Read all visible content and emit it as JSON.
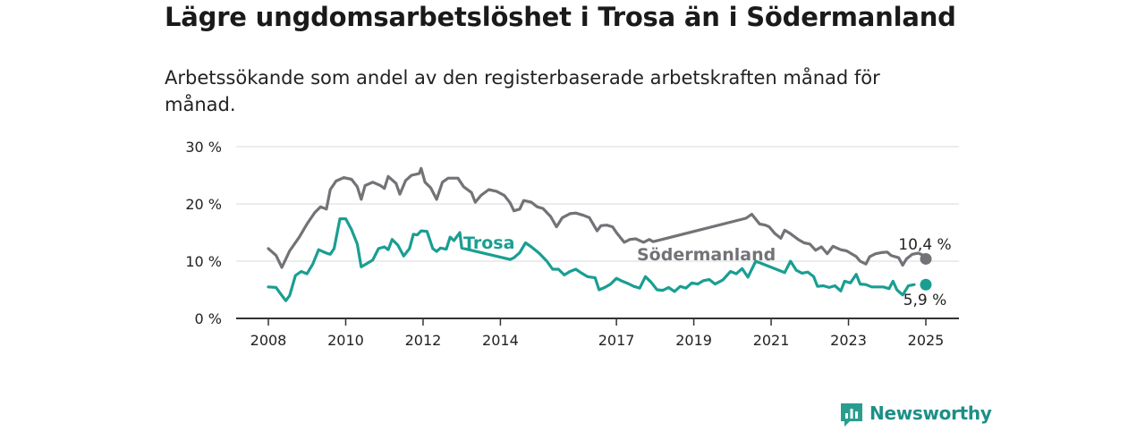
{
  "header": {
    "title": "Lägre ungdomsarbetslöshet i Trosa än i Södermanland",
    "subtitle": "Arbetssökande som andel av den registerbaserade arbetskraften månad för månad."
  },
  "brand": {
    "name": "Newsworthy",
    "color": "#2a9d8f"
  },
  "colors": {
    "trosa": "#1a9e92",
    "sodermanland": "#737277"
  },
  "chart_data": {
    "type": "line",
    "y_ticks": [
      "0 %",
      "10 %",
      "20 %",
      "30 %"
    ],
    "y_tick_values": [
      0,
      10,
      20,
      30
    ],
    "ylim": [
      0,
      30
    ],
    "x_ticks": [
      "2008",
      "2010",
      "2012",
      "2014",
      "2017",
      "2019",
      "2021",
      "2023",
      "2025"
    ],
    "x_tick_values": [
      2008,
      2010,
      2012,
      2014,
      2017,
      2019,
      2021,
      2023,
      2025
    ],
    "xlim": [
      2008,
      2025
    ],
    "grid": true,
    "series": [
      {
        "name": "Södermanland",
        "end_label": "10,4 %",
        "points": [
          [
            2008.0,
            12.2
          ],
          [
            2008.2,
            11.0
          ],
          [
            2008.35,
            8.9
          ],
          [
            2008.55,
            11.8
          ],
          [
            2008.8,
            14.2
          ],
          [
            2009.0,
            16.5
          ],
          [
            2009.2,
            18.5
          ],
          [
            2009.35,
            19.5
          ],
          [
            2009.5,
            19.1
          ],
          [
            2009.6,
            22.5
          ],
          [
            2009.75,
            24.0
          ],
          [
            2009.95,
            24.6
          ],
          [
            2010.15,
            24.3
          ],
          [
            2010.3,
            23.0
          ],
          [
            2010.4,
            20.8
          ],
          [
            2010.5,
            23.2
          ],
          [
            2010.7,
            23.8
          ],
          [
            2010.9,
            23.2
          ],
          [
            2011.0,
            22.7
          ],
          [
            2011.1,
            24.8
          ],
          [
            2011.3,
            23.6
          ],
          [
            2011.4,
            21.7
          ],
          [
            2011.55,
            24.1
          ],
          [
            2011.7,
            25.0
          ],
          [
            2011.9,
            25.3
          ],
          [
            2011.95,
            26.2
          ],
          [
            2012.05,
            23.8
          ],
          [
            2012.2,
            22.8
          ],
          [
            2012.35,
            20.8
          ],
          [
            2012.5,
            23.8
          ],
          [
            2012.65,
            24.5
          ],
          [
            2012.9,
            24.5
          ],
          [
            2013.05,
            23.0
          ],
          [
            2013.25,
            22.0
          ],
          [
            2013.35,
            20.3
          ],
          [
            2013.5,
            21.5
          ],
          [
            2013.7,
            22.5
          ],
          [
            2013.9,
            22.2
          ],
          [
            2014.1,
            21.5
          ],
          [
            2014.25,
            20.2
          ],
          [
            2014.35,
            18.8
          ],
          [
            2014.5,
            19.1
          ],
          [
            2014.6,
            20.6
          ],
          [
            2014.8,
            20.3
          ],
          [
            2014.95,
            19.5
          ],
          [
            2015.1,
            19.2
          ],
          [
            2015.3,
            17.8
          ],
          [
            2015.45,
            16.0
          ],
          [
            2015.6,
            17.6
          ],
          [
            2015.8,
            18.3
          ],
          [
            2015.95,
            18.4
          ],
          [
            2016.15,
            18.0
          ],
          [
            2016.3,
            17.6
          ],
          [
            2016.5,
            15.3
          ],
          [
            2016.6,
            16.2
          ],
          [
            2016.75,
            16.3
          ],
          [
            2016.9,
            16.0
          ],
          [
            2017.0,
            15.0
          ],
          [
            2017.2,
            13.3
          ],
          [
            2017.35,
            13.8
          ],
          [
            2017.5,
            13.9
          ],
          [
            2017.7,
            13.3
          ],
          [
            2017.85,
            13.8
          ],
          [
            2017.95,
            13.4
          ],
          [
            2020.35,
            17.5
          ],
          [
            2020.5,
            18.2
          ],
          [
            2020.7,
            16.5
          ],
          [
            2020.85,
            16.3
          ],
          [
            2020.95,
            16.0
          ],
          [
            2021.1,
            14.8
          ],
          [
            2021.25,
            14.0
          ],
          [
            2021.35,
            15.4
          ],
          [
            2021.5,
            14.8
          ],
          [
            2021.7,
            13.8
          ],
          [
            2021.85,
            13.2
          ],
          [
            2022.0,
            13.0
          ],
          [
            2022.15,
            11.9
          ],
          [
            2022.3,
            12.5
          ],
          [
            2022.45,
            11.3
          ],
          [
            2022.6,
            12.6
          ],
          [
            2022.8,
            12.0
          ],
          [
            2022.95,
            11.8
          ],
          [
            2023.05,
            11.4
          ],
          [
            2023.2,
            10.8
          ],
          [
            2023.3,
            10.0
          ],
          [
            2023.45,
            9.5
          ],
          [
            2023.55,
            10.8
          ],
          [
            2023.7,
            11.3
          ],
          [
            2023.85,
            11.5
          ],
          [
            2024.0,
            11.6
          ],
          [
            2024.1,
            11.0
          ],
          [
            2024.3,
            10.6
          ],
          [
            2024.4,
            9.3
          ],
          [
            2024.5,
            10.4
          ],
          [
            2024.65,
            11.2
          ],
          [
            2024.8,
            11.4
          ],
          [
            2024.95,
            11.0
          ],
          [
            2025.0,
            10.4
          ]
        ]
      },
      {
        "name": "Trosa",
        "end_label": "5,9 %",
        "points": [
          [
            2008.0,
            5.5
          ],
          [
            2008.2,
            5.4
          ],
          [
            2008.35,
            4.0
          ],
          [
            2008.45,
            3.1
          ],
          [
            2008.55,
            4.0
          ],
          [
            2008.7,
            7.5
          ],
          [
            2008.85,
            8.2
          ],
          [
            2009.0,
            7.8
          ],
          [
            2009.15,
            9.5
          ],
          [
            2009.3,
            12.0
          ],
          [
            2009.5,
            11.4
          ],
          [
            2009.6,
            11.2
          ],
          [
            2009.7,
            12.2
          ],
          [
            2009.85,
            17.4
          ],
          [
            2010.0,
            17.4
          ],
          [
            2010.15,
            15.5
          ],
          [
            2010.3,
            13.0
          ],
          [
            2010.4,
            9.0
          ],
          [
            2010.55,
            9.6
          ],
          [
            2010.7,
            10.2
          ],
          [
            2010.85,
            12.2
          ],
          [
            2011.0,
            12.5
          ],
          [
            2011.1,
            12.0
          ],
          [
            2011.2,
            13.8
          ],
          [
            2011.35,
            12.8
          ],
          [
            2011.5,
            10.9
          ],
          [
            2011.65,
            12.2
          ],
          [
            2011.75,
            14.7
          ],
          [
            2011.85,
            14.6
          ],
          [
            2011.95,
            15.3
          ],
          [
            2012.1,
            15.2
          ],
          [
            2012.25,
            12.2
          ],
          [
            2012.35,
            11.7
          ],
          [
            2012.45,
            12.3
          ],
          [
            2012.6,
            12.1
          ],
          [
            2012.7,
            14.2
          ],
          [
            2012.8,
            13.6
          ],
          [
            2012.95,
            15.0
          ],
          [
            2013.0,
            12.3
          ],
          [
            2014.25,
            10.3
          ],
          [
            2014.35,
            10.6
          ],
          [
            2014.5,
            11.5
          ],
          [
            2014.65,
            13.2
          ],
          [
            2014.8,
            12.5
          ],
          [
            2015.0,
            11.4
          ],
          [
            2015.2,
            10.0
          ],
          [
            2015.35,
            8.6
          ],
          [
            2015.5,
            8.6
          ],
          [
            2015.65,
            7.6
          ],
          [
            2015.8,
            8.2
          ],
          [
            2015.95,
            8.6
          ],
          [
            2016.1,
            7.9
          ],
          [
            2016.25,
            7.3
          ],
          [
            2016.45,
            7.1
          ],
          [
            2016.55,
            5.0
          ],
          [
            2016.7,
            5.4
          ],
          [
            2016.85,
            6.0
          ],
          [
            2017.0,
            7.0
          ],
          [
            2017.15,
            6.5
          ],
          [
            2017.3,
            6.1
          ],
          [
            2017.45,
            5.6
          ],
          [
            2017.6,
            5.3
          ],
          [
            2017.75,
            7.3
          ],
          [
            2017.9,
            6.3
          ],
          [
            2018.05,
            5.0
          ],
          [
            2018.2,
            4.9
          ],
          [
            2018.35,
            5.4
          ],
          [
            2018.5,
            4.7
          ],
          [
            2018.65,
            5.6
          ],
          [
            2018.8,
            5.3
          ],
          [
            2018.95,
            6.2
          ],
          [
            2019.1,
            6.0
          ],
          [
            2019.25,
            6.6
          ],
          [
            2019.4,
            6.8
          ],
          [
            2019.55,
            6.0
          ],
          [
            2019.75,
            6.7
          ],
          [
            2019.95,
            8.2
          ],
          [
            2020.1,
            7.8
          ],
          [
            2020.25,
            8.7
          ],
          [
            2020.4,
            7.2
          ],
          [
            2020.6,
            10.0
          ],
          [
            2021.35,
            8.0
          ],
          [
            2021.5,
            10.0
          ],
          [
            2021.65,
            8.4
          ],
          [
            2021.8,
            7.9
          ],
          [
            2021.95,
            8.1
          ],
          [
            2022.1,
            7.3
          ],
          [
            2022.2,
            5.6
          ],
          [
            2022.35,
            5.7
          ],
          [
            2022.5,
            5.4
          ],
          [
            2022.65,
            5.7
          ],
          [
            2022.8,
            4.8
          ],
          [
            2022.9,
            6.5
          ],
          [
            2023.05,
            6.2
          ],
          [
            2023.2,
            7.7
          ],
          [
            2023.3,
            6.0
          ],
          [
            2023.45,
            5.9
          ],
          [
            2023.6,
            5.5
          ],
          [
            2023.75,
            5.5
          ],
          [
            2023.9,
            5.5
          ],
          [
            2024.05,
            5.2
          ],
          [
            2024.15,
            6.5
          ],
          [
            2024.25,
            5.0
          ],
          [
            2024.4,
            4.1
          ],
          [
            2024.55,
            5.7
          ],
          [
            2024.7,
            5.9
          ]
        ]
      }
    ]
  }
}
